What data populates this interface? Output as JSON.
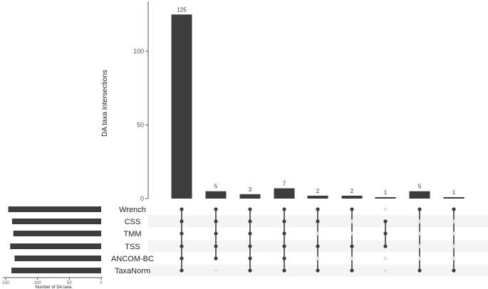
{
  "chart_data": {
    "type": "upset",
    "ylabel": "DA taxa intersections",
    "set_size_xlabel": "Number of DA taxa",
    "sets": [
      "Wrench",
      "CSS",
      "TMM",
      "TSS",
      "ANCOM-BC",
      "TaxaNorm"
    ],
    "set_sizes": [
      146,
      140,
      138,
      143,
      136,
      141
    ],
    "set_size_ticks": [
      150,
      100,
      50,
      0
    ],
    "set_size_xlim": [
      0,
      150
    ],
    "ylim": [
      0,
      130
    ],
    "y_ticks": [
      0,
      50,
      100
    ],
    "intersections": [
      {
        "value": 125,
        "label": "125",
        "members": [
          0,
          1,
          2,
          3,
          4,
          5
        ]
      },
      {
        "value": 5,
        "label": "5",
        "members": [
          0,
          1,
          2,
          3,
          4
        ]
      },
      {
        "value": 3,
        "label": "3",
        "members": [
          0,
          1,
          2,
          3,
          4,
          5
        ]
      },
      {
        "value": 7,
        "label": "7",
        "members": [
          0,
          1,
          2,
          3,
          4,
          5
        ]
      },
      {
        "value": 2,
        "label": "2",
        "members": [
          0,
          1,
          3,
          5
        ]
      },
      {
        "value": 2,
        "label": "2",
        "members": [
          0,
          3,
          5
        ]
      },
      {
        "value": 1,
        "label": "1",
        "members": [
          1,
          2,
          3
        ]
      },
      {
        "value": 5,
        "label": "5",
        "members": [
          0,
          5
        ]
      },
      {
        "value": 1,
        "label": "1",
        "members": [
          0,
          5
        ]
      }
    ],
    "colors": {
      "bar": "#3d3d3d",
      "dot_active": "#3d3d3d",
      "dot_inactive": "#e3e3e3",
      "stripe": "#f4f4f4",
      "axis": "#555555"
    }
  }
}
